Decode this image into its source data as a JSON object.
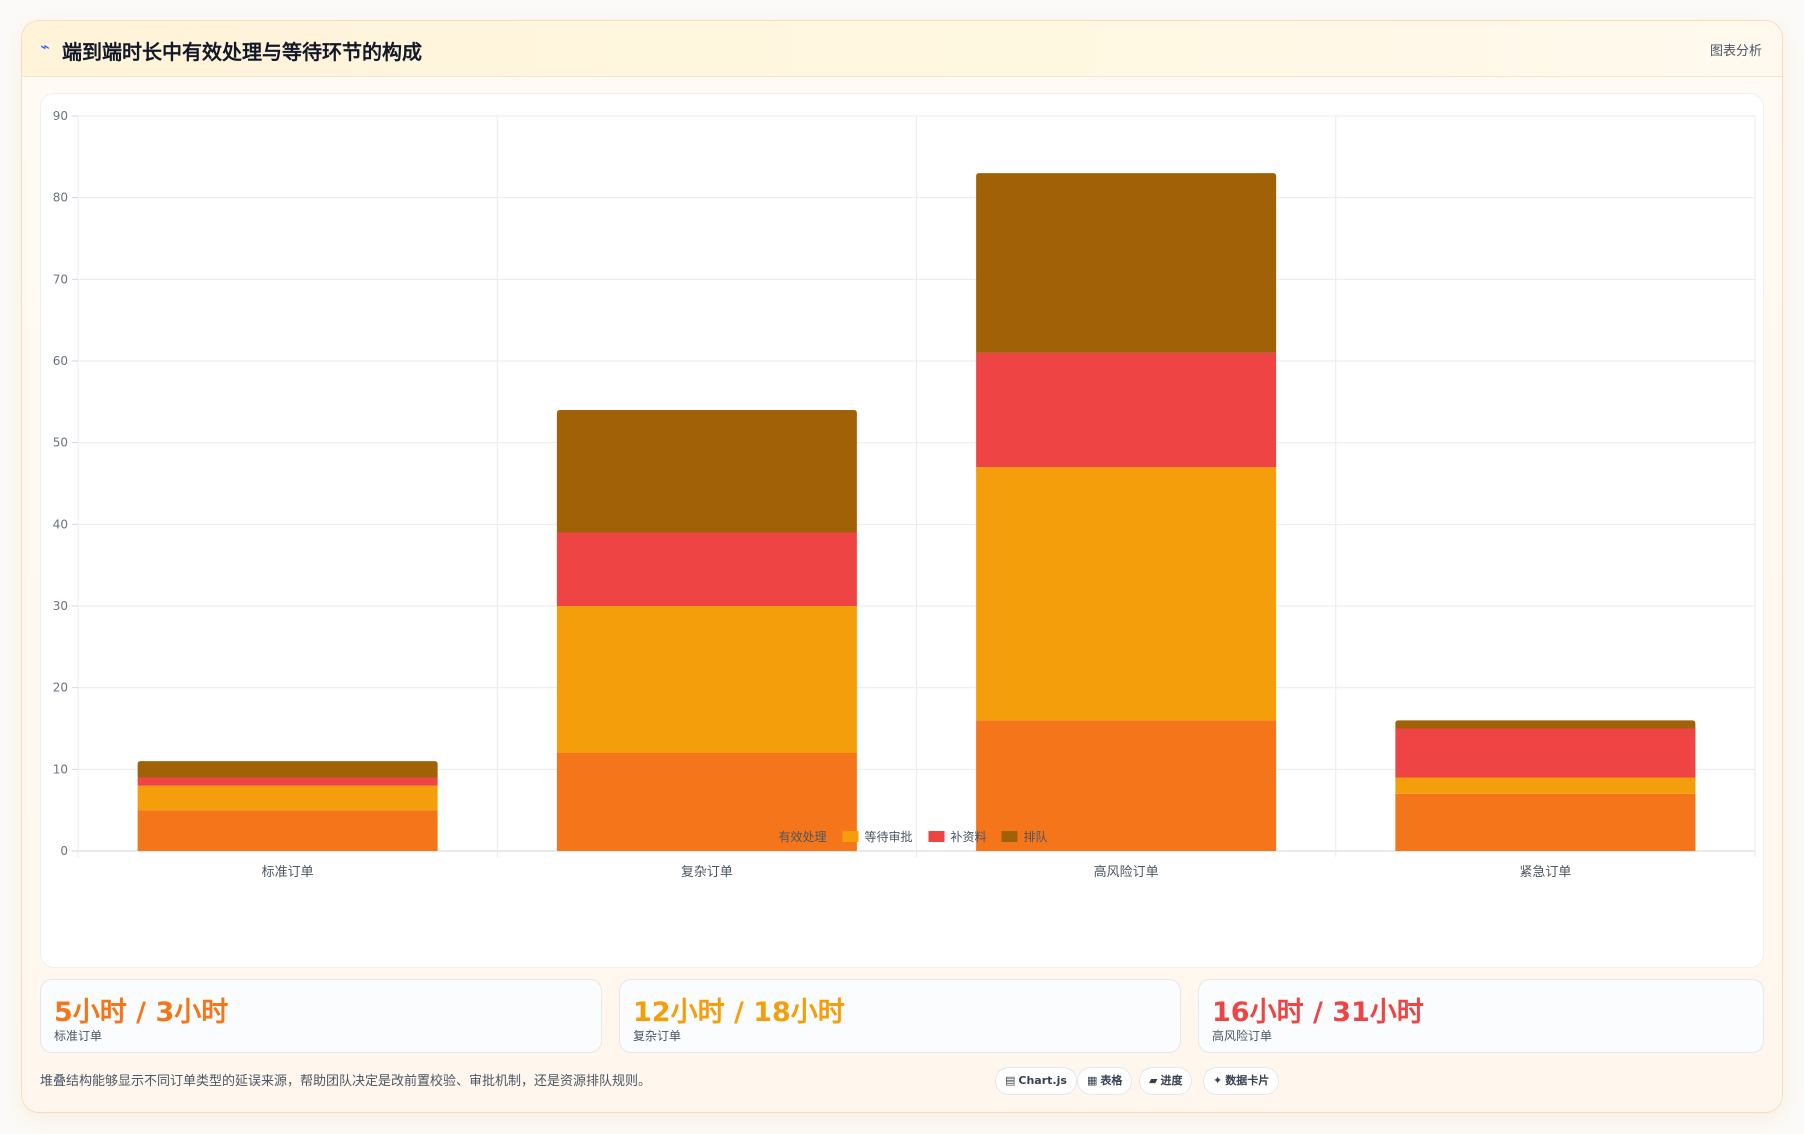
{
  "header": {
    "icon": "trend-line-icon",
    "icon_glyph": "⌁",
    "title": "端到端时长中有效处理与等待环节的构成",
    "action_label": "图表分析"
  },
  "chart_data": {
    "type": "bar",
    "stacked": true,
    "categories": [
      "标准订单",
      "复杂订单",
      "高风险订单",
      "紧急订单"
    ],
    "series": [
      {
        "name": "有效处理",
        "color": "#f5761a",
        "values": [
          5,
          12,
          16,
          7
        ]
      },
      {
        "name": "等待审批",
        "color": "#f59e0b",
        "values": [
          3,
          18,
          31,
          2
        ]
      },
      {
        "name": "补资料",
        "color": "#ef4444",
        "values": [
          1,
          9,
          14,
          6
        ]
      },
      {
        "name": "排队",
        "color": "#a16207",
        "values": [
          2,
          15,
          22,
          1
        ]
      }
    ],
    "ylim": [
      0,
      90
    ],
    "yticks": [
      0,
      10,
      20,
      30,
      40,
      50,
      60,
      70,
      80,
      90
    ],
    "grid": true,
    "legend_position": "bottom"
  },
  "stats": [
    {
      "value": "5小时 / 3小时",
      "label": "标准订单",
      "color": "#f5761a"
    },
    {
      "value": "12小时 / 18小时",
      "label": "复杂订单",
      "color": "#f59e0b"
    },
    {
      "value": "16小时 / 31小时",
      "label": "高风险订单",
      "color": "#ef4444"
    }
  ],
  "footer": {
    "note": "堆叠结构能够显示不同订单类型的延误来源，帮助团队决定是改前置校验、审批机制，还是资源排队规则。",
    "chips": [
      {
        "icon": "chart-icon",
        "glyph": "▤",
        "label": "Chart.js"
      },
      {
        "icon": "table-icon",
        "glyph": "▦",
        "label": "表格"
      },
      {
        "icon": "progress-icon",
        "glyph": "▰",
        "label": "进度"
      },
      {
        "icon": "data-card-icon",
        "glyph": "✦",
        "label": "数据卡片"
      }
    ]
  }
}
